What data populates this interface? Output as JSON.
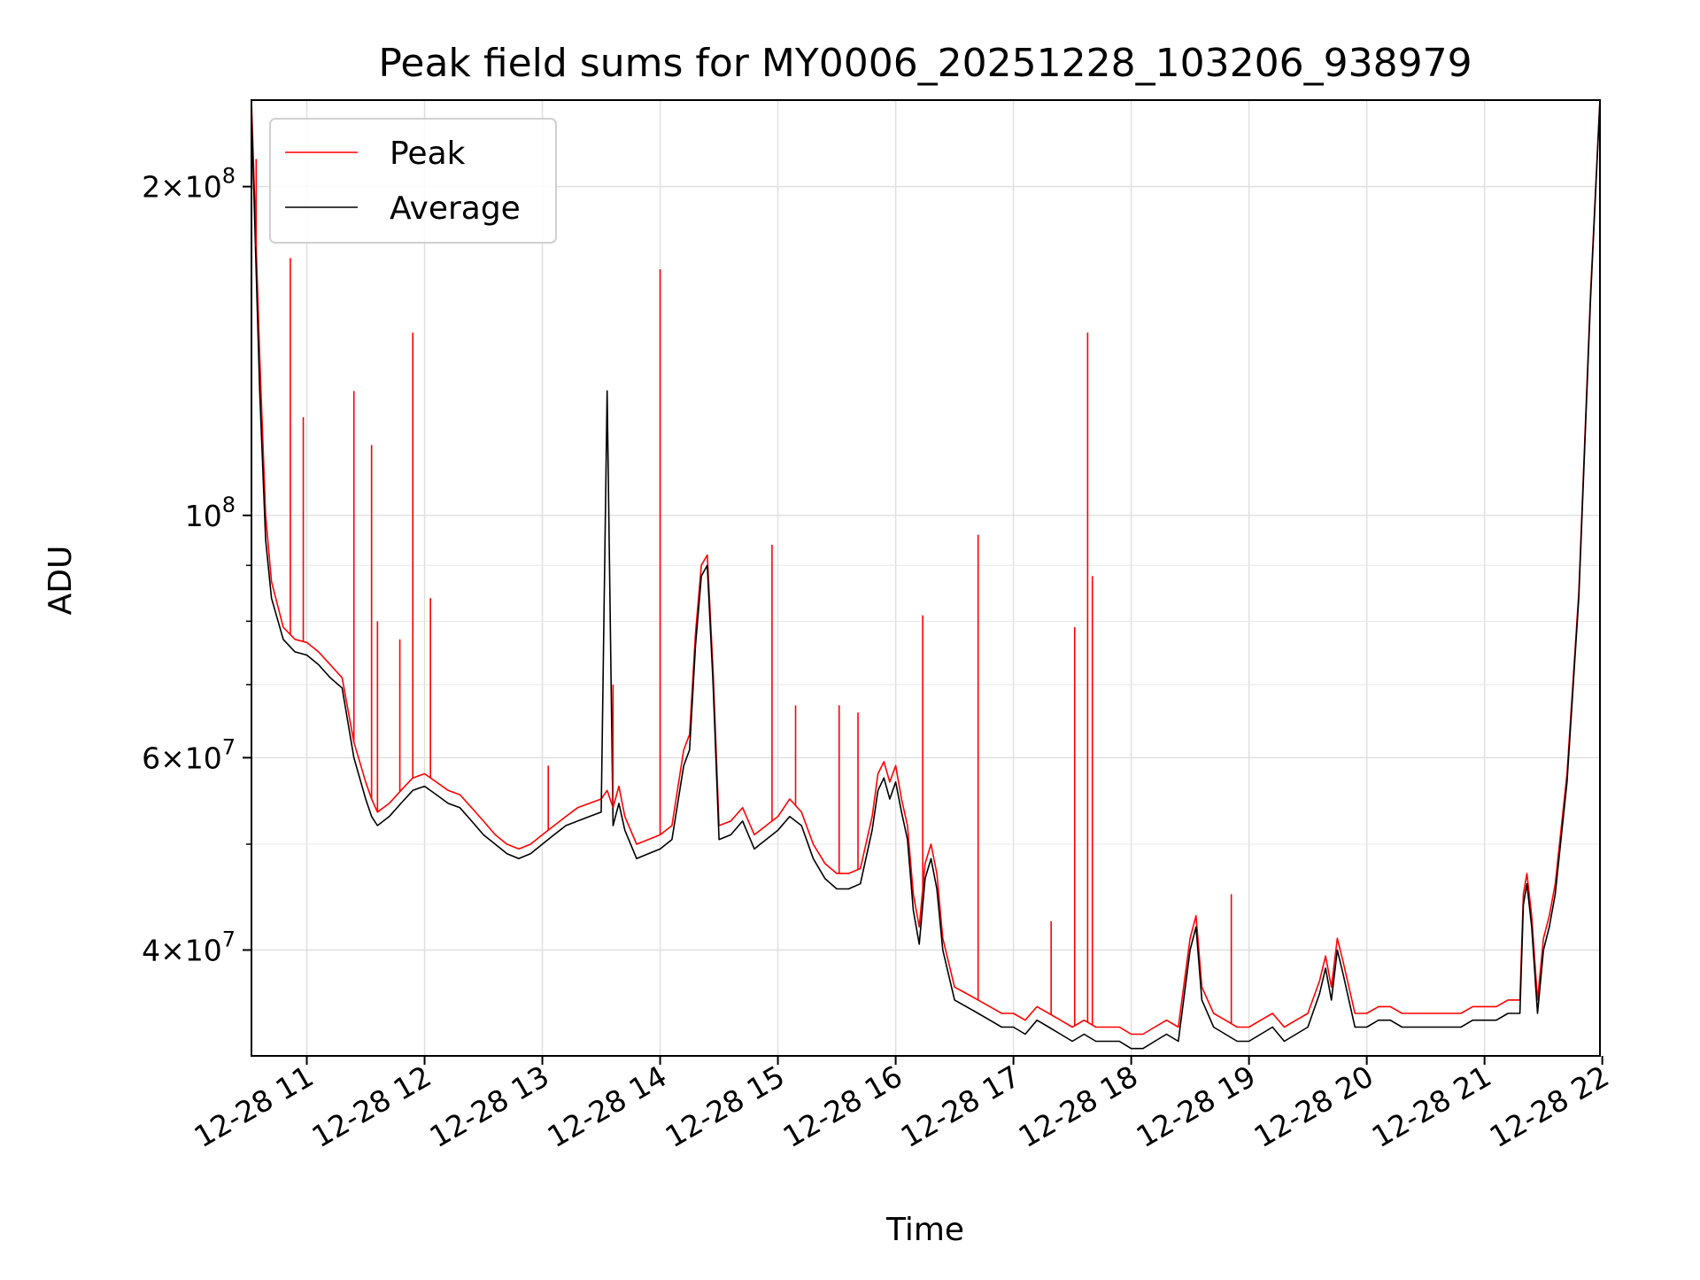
{
  "chart_data": {
    "type": "line",
    "title": "Peak field sums for MY0006_20251228_103206_938979",
    "xlabel": "Time",
    "ylabel": "ADU",
    "x_unit": "time of day on 12-28 (hours)",
    "xlim": [
      10.53,
      21.98
    ],
    "ylim": [
      32000000.0,
      240000000.0
    ],
    "yscale": "log",
    "grid": true,
    "legend": "upper-left",
    "x_ticks": [
      {
        "value": 11,
        "label": "12-28 11"
      },
      {
        "value": 12,
        "label": "12-28 12"
      },
      {
        "value": 13,
        "label": "12-28 13"
      },
      {
        "value": 14,
        "label": "12-28 14"
      },
      {
        "value": 15,
        "label": "12-28 15"
      },
      {
        "value": 16,
        "label": "12-28 16"
      },
      {
        "value": 17,
        "label": "12-28 17"
      },
      {
        "value": 18,
        "label": "12-28 18"
      },
      {
        "value": 19,
        "label": "12-28 19"
      },
      {
        "value": 20,
        "label": "12-28 20"
      },
      {
        "value": 21,
        "label": "12-28 21"
      },
      {
        "value": 22,
        "label": "12-28 22"
      }
    ],
    "y_ticks": [
      {
        "value": 40000000,
        "mantissa": "4",
        "exponent": "7"
      },
      {
        "value": 60000000,
        "mantissa": "6",
        "exponent": "7"
      },
      {
        "value": 100000000,
        "mantissa": "",
        "exponent": "8"
      },
      {
        "value": 200000000,
        "mantissa": "2",
        "exponent": "8"
      }
    ],
    "y_minor_ticks": [
      50000000,
      70000000,
      80000000,
      90000000
    ],
    "series": [
      {
        "name": "Peak",
        "color": "#ff0000",
        "x": [
          10.53,
          10.6,
          10.65,
          10.7,
          10.8,
          10.9,
          11.0,
          11.1,
          11.2,
          11.3,
          11.4,
          11.5,
          11.55,
          11.6,
          11.7,
          11.8,
          11.9,
          12.0,
          12.1,
          12.2,
          12.3,
          12.4,
          12.5,
          12.6,
          12.7,
          12.8,
          12.9,
          13.0,
          13.1,
          13.2,
          13.3,
          13.4,
          13.5,
          13.55,
          13.6,
          13.65,
          13.7,
          13.8,
          13.9,
          14.0,
          14.1,
          14.2,
          14.25,
          14.3,
          14.35,
          14.4,
          14.45,
          14.5,
          14.6,
          14.7,
          14.8,
          14.85,
          14.9,
          15.0,
          15.1,
          15.2,
          15.3,
          15.4,
          15.5,
          15.6,
          15.7,
          15.8,
          15.85,
          15.9,
          15.95,
          16.0,
          16.05,
          16.1,
          16.15,
          16.2,
          16.25,
          16.3,
          16.35,
          16.4,
          16.5,
          16.6,
          16.7,
          16.8,
          16.9,
          17.0,
          17.1,
          17.2,
          17.3,
          17.4,
          17.5,
          17.6,
          17.7,
          17.8,
          17.9,
          18.0,
          18.1,
          18.2,
          18.3,
          18.4,
          18.5,
          18.55,
          18.6,
          18.7,
          18.8,
          18.9,
          19.0,
          19.1,
          19.2,
          19.3,
          19.4,
          19.5,
          19.6,
          19.65,
          19.7,
          19.75,
          19.8,
          19.9,
          20.0,
          20.1,
          20.2,
          20.3,
          20.4,
          20.5,
          20.6,
          20.7,
          20.8,
          20.9,
          21.0,
          21.1,
          21.2,
          21.3,
          21.33,
          21.36,
          21.4,
          21.45,
          21.5,
          21.55,
          21.6,
          21.7,
          21.8,
          21.9,
          21.98
        ],
        "y": [
          240000000,
          140000000,
          100000000,
          87000000,
          79000000,
          77000000,
          76500000,
          75000000,
          73000000,
          71000000,
          62000000,
          57000000,
          55000000,
          53500000,
          54500000,
          56000000,
          57500000,
          58000000,
          57000000,
          56000000,
          55500000,
          54000000,
          52500000,
          51000000,
          50000000,
          49500000,
          50000000,
          51000000,
          52000000,
          53000000,
          54000000,
          54500000,
          55000000,
          56000000,
          54000000,
          56500000,
          53000000,
          50000000,
          50500000,
          51000000,
          52000000,
          61000000,
          63000000,
          78000000,
          90000000,
          92000000,
          72000000,
          52000000,
          52500000,
          54000000,
          51000000,
          51500000,
          52000000,
          53000000,
          55000000,
          53500000,
          50000000,
          48000000,
          47000000,
          47000000,
          47500000,
          53000000,
          58000000,
          59500000,
          57000000,
          59000000,
          55000000,
          52000000,
          45000000,
          42000000,
          48000000,
          50000000,
          47000000,
          41000000,
          37000000,
          36500000,
          36000000,
          35500000,
          35000000,
          35000000,
          34500000,
          35500000,
          35000000,
          34500000,
          34000000,
          34500000,
          34000000,
          34000000,
          34000000,
          33500000,
          33500000,
          34000000,
          34500000,
          34000000,
          41000000,
          43000000,
          37000000,
          35000000,
          34500000,
          34000000,
          34000000,
          34500000,
          35000000,
          34000000,
          34500000,
          35000000,
          37500000,
          39500000,
          37000000,
          41000000,
          39000000,
          35000000,
          35000000,
          35500000,
          35500000,
          35000000,
          35000000,
          35000000,
          35000000,
          35000000,
          35000000,
          35500000,
          35500000,
          35500000,
          36000000,
          36000000,
          45000000,
          47000000,
          43000000,
          36000000,
          41000000,
          43000000,
          46000000,
          58000000,
          85000000,
          160000000,
          240000000
        ]
      },
      {
        "name": "Average",
        "color": "#000000",
        "x": [
          10.53,
          10.6,
          10.65,
          10.7,
          10.8,
          10.9,
          11.0,
          11.1,
          11.2,
          11.3,
          11.4,
          11.5,
          11.55,
          11.6,
          11.7,
          11.8,
          11.9,
          12.0,
          12.1,
          12.2,
          12.3,
          12.4,
          12.5,
          12.6,
          12.7,
          12.8,
          12.9,
          13.0,
          13.1,
          13.2,
          13.3,
          13.4,
          13.5,
          13.55,
          13.6,
          13.65,
          13.7,
          13.8,
          13.9,
          14.0,
          14.1,
          14.2,
          14.25,
          14.3,
          14.35,
          14.4,
          14.45,
          14.5,
          14.6,
          14.7,
          14.8,
          14.85,
          14.9,
          15.0,
          15.1,
          15.2,
          15.3,
          15.4,
          15.5,
          15.6,
          15.7,
          15.8,
          15.85,
          15.9,
          15.95,
          16.0,
          16.05,
          16.1,
          16.15,
          16.2,
          16.25,
          16.3,
          16.35,
          16.4,
          16.5,
          16.6,
          16.7,
          16.8,
          16.9,
          17.0,
          17.1,
          17.2,
          17.3,
          17.4,
          17.5,
          17.6,
          17.7,
          17.8,
          17.9,
          18.0,
          18.1,
          18.2,
          18.3,
          18.4,
          18.5,
          18.55,
          18.6,
          18.7,
          18.8,
          18.9,
          19.0,
          19.1,
          19.2,
          19.3,
          19.4,
          19.5,
          19.6,
          19.65,
          19.7,
          19.75,
          19.8,
          19.9,
          20.0,
          20.1,
          20.2,
          20.3,
          20.4,
          20.5,
          20.6,
          20.7,
          20.8,
          20.9,
          21.0,
          21.1,
          21.2,
          21.3,
          21.33,
          21.36,
          21.4,
          21.45,
          21.5,
          21.55,
          21.6,
          21.7,
          21.8,
          21.9,
          21.98
        ],
        "y": [
          235000000,
          130000000,
          95000000,
          84000000,
          77000000,
          75000000,
          74500000,
          73000000,
          71000000,
          69500000,
          60000000,
          55000000,
          53000000,
          52000000,
          53000000,
          54500000,
          56000000,
          56500000,
          55500000,
          54500000,
          54000000,
          52500000,
          51000000,
          50000000,
          49000000,
          48500000,
          49000000,
          50000000,
          51000000,
          52000000,
          52500000,
          53000000,
          53500000,
          130000000,
          52000000,
          54500000,
          51500000,
          48500000,
          49000000,
          49500000,
          50500000,
          59000000,
          61000000,
          76000000,
          88000000,
          90000000,
          70000000,
          50500000,
          51000000,
          52500000,
          49500000,
          50000000,
          50500000,
          51500000,
          53000000,
          52000000,
          48500000,
          46500000,
          45500000,
          45500000,
          46000000,
          51500000,
          56000000,
          57500000,
          55000000,
          57000000,
          53500000,
          50500000,
          43500000,
          40500000,
          46500000,
          48500000,
          45500000,
          40000000,
          36000000,
          35500000,
          35000000,
          34500000,
          34000000,
          34000000,
          33500000,
          34500000,
          34000000,
          33500000,
          33000000,
          33500000,
          33000000,
          33000000,
          33000000,
          32500000,
          32500000,
          33000000,
          33500000,
          33000000,
          40000000,
          42000000,
          36000000,
          34000000,
          33500000,
          33000000,
          33000000,
          33500000,
          34000000,
          33000000,
          33500000,
          34000000,
          36500000,
          38500000,
          36000000,
          40000000,
          38000000,
          34000000,
          34000000,
          34500000,
          34500000,
          34000000,
          34000000,
          34000000,
          34000000,
          34000000,
          34000000,
          34500000,
          34500000,
          34500000,
          35000000,
          35000000,
          44000000,
          46000000,
          42000000,
          35000000,
          40000000,
          42000000,
          45000000,
          57000000,
          84000000,
          158000000,
          240000000
        ]
      }
    ],
    "peak_spikes": [
      {
        "x": 10.57,
        "y": 212000000
      },
      {
        "x": 10.86,
        "y": 172000000
      },
      {
        "x": 10.97,
        "y": 123000000
      },
      {
        "x": 11.4,
        "y": 130000000
      },
      {
        "x": 11.55,
        "y": 116000000
      },
      {
        "x": 11.6,
        "y": 80000000
      },
      {
        "x": 11.79,
        "y": 77000000
      },
      {
        "x": 11.9,
        "y": 147000000
      },
      {
        "x": 12.05,
        "y": 84000000
      },
      {
        "x": 13.05,
        "y": 59000000
      },
      {
        "x": 13.6,
        "y": 70000000
      },
      {
        "x": 14.0,
        "y": 168000000
      },
      {
        "x": 14.95,
        "y": 94000000
      },
      {
        "x": 15.15,
        "y": 67000000
      },
      {
        "x": 15.52,
        "y": 67000000
      },
      {
        "x": 15.68,
        "y": 66000000
      },
      {
        "x": 16.23,
        "y": 81000000
      },
      {
        "x": 16.7,
        "y": 96000000
      },
      {
        "x": 17.32,
        "y": 42500000
      },
      {
        "x": 17.52,
        "y": 79000000
      },
      {
        "x": 17.63,
        "y": 147000000
      },
      {
        "x": 17.67,
        "y": 88000000
      },
      {
        "x": 18.85,
        "y": 45000000
      }
    ]
  }
}
